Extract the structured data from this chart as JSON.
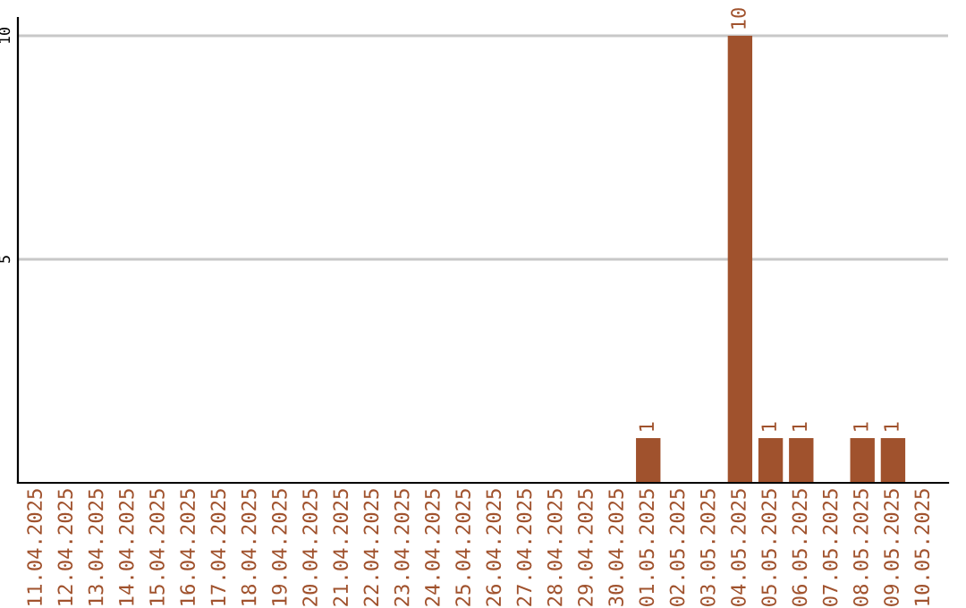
{
  "chart_data": {
    "type": "bar",
    "categories": [
      "11.04.2025",
      "12.04.2025",
      "13.04.2025",
      "14.04.2025",
      "15.04.2025",
      "16.04.2025",
      "17.04.2025",
      "18.04.2025",
      "19.04.2025",
      "20.04.2025",
      "21.04.2025",
      "22.04.2025",
      "23.04.2025",
      "24.04.2025",
      "25.04.2025",
      "26.04.2025",
      "27.04.2025",
      "28.04.2025",
      "29.04.2025",
      "30.04.2025",
      "01.05.2025",
      "02.05.2025",
      "03.05.2025",
      "04.05.2025",
      "05.05.2025",
      "06.05.2025",
      "07.05.2025",
      "08.05.2025",
      "09.05.2025",
      "10.05.2025"
    ],
    "values": [
      0,
      0,
      0,
      0,
      0,
      0,
      0,
      0,
      0,
      0,
      0,
      0,
      0,
      0,
      0,
      0,
      0,
      0,
      0,
      0,
      1,
      0,
      0,
      10,
      1,
      1,
      0,
      1,
      1,
      0
    ],
    "value_labels": [
      null,
      null,
      null,
      null,
      null,
      null,
      null,
      null,
      null,
      null,
      null,
      null,
      null,
      null,
      null,
      null,
      null,
      null,
      null,
      null,
      "1",
      null,
      null,
      "10",
      "1",
      "1",
      null,
      "1",
      "1",
      null
    ],
    "color": "#a0522d",
    "ylim": [
      0,
      10.4
    ],
    "yticks": [
      5,
      10
    ],
    "grid": "y"
  }
}
